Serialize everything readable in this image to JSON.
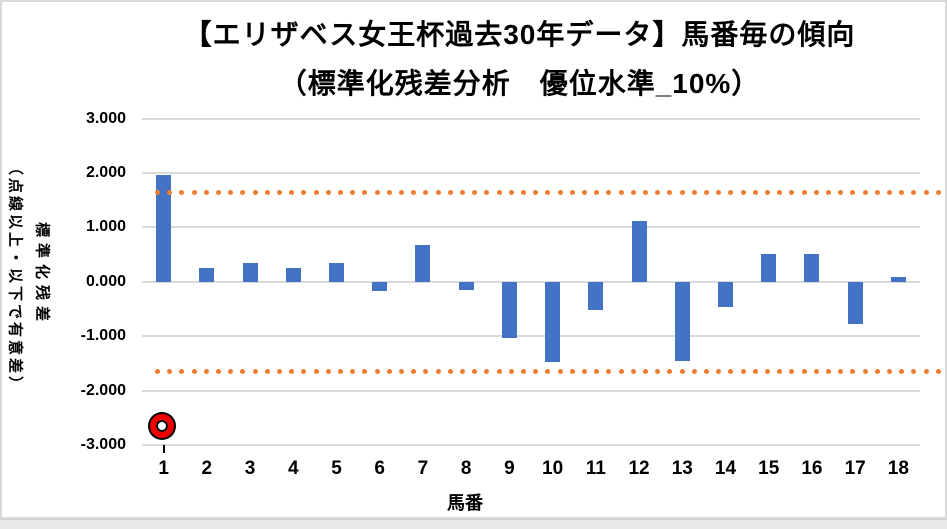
{
  "chart_data": {
    "type": "bar",
    "title": "【エリザベス女王杯過去30年データ】馬番毎の傾向",
    "subtitle": "（標準化残差分析　優位水準_10%）",
    "xlabel": "馬番",
    "ylabel": "標準化残差",
    "ylabel_note": "（点線以上・以下で有意差）",
    "categories": [
      "1",
      "2",
      "3",
      "4",
      "5",
      "6",
      "7",
      "8",
      "9",
      "10",
      "11",
      "12",
      "13",
      "14",
      "15",
      "16",
      "17",
      "18"
    ],
    "values": [
      1.97,
      0.25,
      0.34,
      0.25,
      0.34,
      -0.17,
      0.67,
      -0.16,
      -1.04,
      -1.47,
      -0.52,
      1.11,
      -1.46,
      -0.46,
      0.51,
      0.51,
      -0.77,
      0.08
    ],
    "ylim": [
      -3,
      3
    ],
    "ytick_step": 1.0,
    "ytick_labels": [
      "3.000",
      "2.000",
      "1.000",
      "0.000",
      "-1.000",
      "-2.000",
      "-3.000"
    ],
    "grid": "horizontal",
    "legend": "none",
    "thresholds": {
      "upper": 1.645,
      "lower": -1.645,
      "line_style": "dotted"
    },
    "marker": {
      "category": "1",
      "value": -2.69,
      "shape": "double-circle",
      "color": "#ee0000"
    },
    "colors": {
      "bar": "#4472c4",
      "threshold": "#ed7d31",
      "gridline": "#d9d9d9",
      "text": "#000000"
    }
  }
}
